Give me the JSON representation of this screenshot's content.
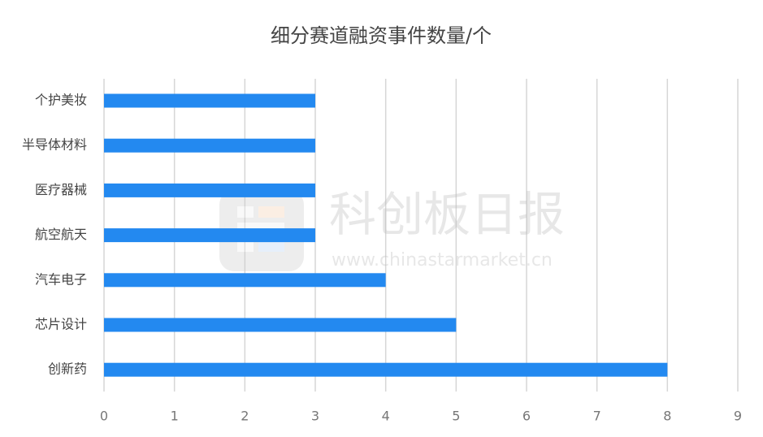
{
  "chart_data": {
    "type": "bar",
    "orientation": "horizontal",
    "title": "细分赛道融资事件数量/个",
    "categories": [
      "个护美妆",
      "半导体材料",
      "医疗器械",
      "航空航天",
      "汽车电子",
      "芯片设计",
      "创新药"
    ],
    "values": [
      3,
      3,
      3,
      3,
      4,
      5,
      8
    ],
    "color": "#2389f0",
    "xlim": [
      0,
      9
    ],
    "xticks": [
      0,
      1,
      2,
      3,
      4,
      5,
      6,
      7,
      8,
      9
    ],
    "grid": true,
    "watermark": {
      "name": "科创板日报",
      "url": "www.chinastarmarket.cn"
    }
  }
}
